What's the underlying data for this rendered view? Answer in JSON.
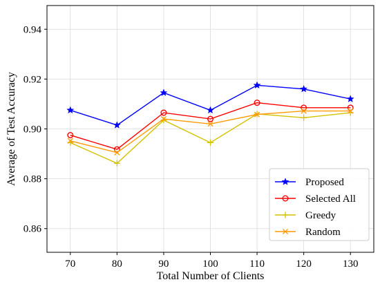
{
  "chart_data": {
    "type": "line",
    "title": "",
    "xlabel": "Total Number of Clients",
    "ylabel": "Average of Test Accuracy",
    "x": [
      70,
      80,
      90,
      100,
      110,
      120,
      130
    ],
    "xticks": [
      "70",
      "80",
      "90",
      "100",
      "110",
      "120",
      "130"
    ],
    "yticks": [
      "0.86",
      "0.88",
      "0.90",
      "0.92",
      "0.94"
    ],
    "xlim": [
      65,
      135
    ],
    "ylim": [
      0.8505,
      0.9495
    ],
    "grid": true,
    "legend_position": "lower-right",
    "series": [
      {
        "name": "Proposed",
        "color": "#0000ff",
        "marker": "star",
        "values": [
          0.9075,
          0.9015,
          0.9145,
          0.9075,
          0.9175,
          0.916,
          0.912
        ]
      },
      {
        "name": "Selected All",
        "color": "#ff0000",
        "marker": "circle",
        "values": [
          0.8975,
          0.8918,
          0.9065,
          0.904,
          0.9105,
          0.9085,
          0.9085
        ]
      },
      {
        "name": "Greedy",
        "color": "#d4c100",
        "marker": "plus",
        "values": [
          0.8945,
          0.8862,
          0.9035,
          0.8945,
          0.906,
          0.9045,
          0.9065
        ]
      },
      {
        "name": "Random",
        "color": "#ff9900",
        "marker": "x",
        "values": [
          0.8952,
          0.8905,
          0.904,
          0.902,
          0.9058,
          0.9072,
          0.9072
        ]
      }
    ]
  }
}
